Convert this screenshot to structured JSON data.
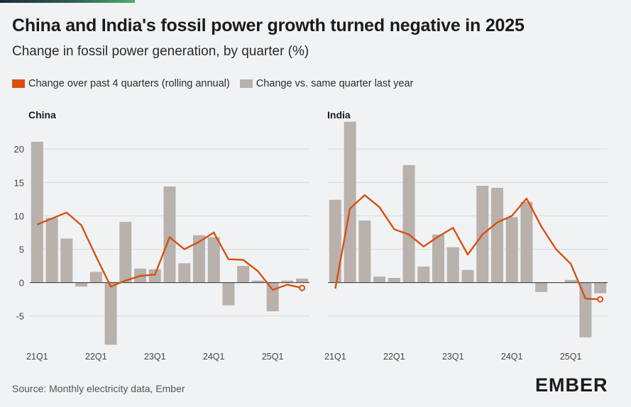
{
  "header": {
    "title": "China and India's fossil power growth turned negative in 2025",
    "subtitle": "Change in fossil power generation, by quarter (%)"
  },
  "legend": {
    "line_label": "Change over past 4 quarters (rolling annual)",
    "bar_label": "Change vs. same quarter last year"
  },
  "colors": {
    "line": "#d9500f",
    "bar": "#b8b1ac",
    "grid": "#d7d9dc",
    "zero": "#444444"
  },
  "footer": {
    "source": "Source: Monthly electricity data, Ember",
    "logo": "EMBER"
  },
  "chart_data": [
    {
      "type": "bar+line",
      "title": "China",
      "categories": [
        "21Q1",
        "21Q2",
        "21Q3",
        "21Q4",
        "22Q1",
        "22Q2",
        "22Q3",
        "22Q4",
        "23Q1",
        "23Q2",
        "23Q3",
        "23Q4",
        "24Q1",
        "24Q2",
        "24Q3",
        "24Q4",
        "25Q1",
        "25Q2",
        "25Q3"
      ],
      "x_tick_labels": [
        "21Q1",
        "",
        "",
        "",
        "22Q1",
        "",
        "",
        "",
        "23Q1",
        "",
        "",
        "",
        "24Q1",
        "",
        "",
        "",
        "25Q1",
        "",
        ""
      ],
      "series": [
        {
          "name": "Change vs. same quarter last year",
          "type": "bar",
          "values": [
            21.1,
            9.7,
            6.6,
            -0.6,
            1.6,
            -9.3,
            9.1,
            2.1,
            2.0,
            14.4,
            2.9,
            7.1,
            6.8,
            -3.4,
            2.5,
            0.3,
            -4.3,
            0.3,
            0.6
          ]
        },
        {
          "name": "Change over past 4 quarters (rolling annual)",
          "type": "line",
          "values": [
            8.7,
            9.6,
            10.5,
            8.6,
            3.9,
            -0.6,
            0.3,
            1.0,
            1.2,
            6.8,
            5.0,
            6.1,
            7.5,
            3.5,
            3.4,
            1.7,
            -1.1,
            -0.3,
            -0.8
          ]
        }
      ],
      "ylim": [
        -9.5,
        23
      ],
      "yticks": [
        -5,
        0,
        5,
        10,
        15,
        20
      ]
    },
    {
      "type": "bar+line",
      "title": "India",
      "categories": [
        "21Q1",
        "21Q2",
        "21Q3",
        "21Q4",
        "22Q1",
        "22Q2",
        "22Q3",
        "22Q4",
        "23Q1",
        "23Q2",
        "23Q3",
        "23Q4",
        "24Q1",
        "24Q2",
        "24Q3",
        "24Q4",
        "25Q1",
        "25Q2",
        "25Q3"
      ],
      "x_tick_labels": [
        "21Q1",
        "",
        "",
        "",
        "22Q1",
        "",
        "",
        "",
        "23Q1",
        "",
        "",
        "",
        "24Q1",
        "",
        "",
        "",
        "25Q1",
        "",
        ""
      ],
      "series": [
        {
          "name": "Change vs. same quarter last year",
          "type": "bar",
          "values": [
            12.4,
            24.1,
            9.3,
            0.9,
            0.7,
            17.6,
            2.4,
            7.2,
            5.3,
            1.9,
            14.5,
            14.2,
            9.8,
            12.1,
            -1.4,
            0.0,
            0.4,
            -8.2,
            -1.6
          ]
        },
        {
          "name": "Change over past 4 quarters (rolling annual)",
          "type": "line",
          "values": [
            -0.9,
            11.1,
            13.1,
            11.3,
            8.0,
            7.2,
            5.4,
            6.9,
            8.2,
            4.2,
            7.2,
            9.0,
            10.0,
            12.6,
            8.4,
            5.0,
            2.8,
            -2.4,
            -2.5
          ]
        }
      ],
      "ylim": [
        -9.5,
        23
      ],
      "yticks": [
        -5,
        0,
        5,
        10,
        15,
        20
      ]
    }
  ]
}
